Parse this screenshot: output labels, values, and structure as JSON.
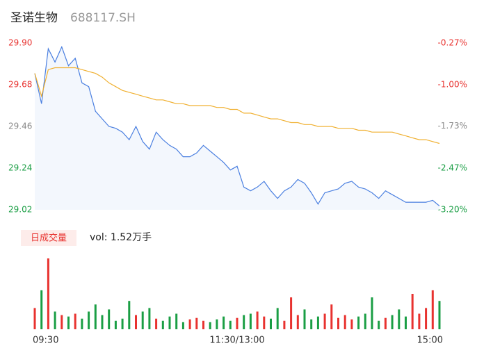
{
  "chart_data": {
    "type": "intraday",
    "title": "圣诺生物",
    "code": "688117.SH",
    "volume_button": "日成交量",
    "volume_label": "vol: 1.52万手",
    "xlim": [
      0,
      240
    ],
    "xticks": [
      {
        "value": 0,
        "label": "09:30"
      },
      {
        "value": 120,
        "label": "11:30/13:00"
      },
      {
        "value": 240,
        "label": "15:00"
      }
    ],
    "ylim": [
      29.02,
      29.9
    ],
    "yticks": [
      {
        "value": 29.9,
        "label": "29.90"
      },
      29.68,
      29.46,
      29.24,
      29.02
    ],
    "ytick_colors": [
      "#e8322f",
      "#e8322f",
      "#888888",
      "#1a9e44",
      "#1a9e44"
    ],
    "y2lim": [
      -3.2,
      -0.27
    ],
    "y2ticks": [
      {
        "value": -0.27,
        "label": "-0.27%"
      },
      {
        "value": -1.0,
        "label": "-1.00%"
      },
      {
        "value": -1.73,
        "label": "-1.73%"
      },
      {
        "value": -2.47,
        "label": "-2.47%"
      },
      {
        "value": -3.2,
        "label": "-3.20%"
      }
    ],
    "y2tick_colors": [
      "#e8322f",
      "#e8322f",
      "#888888",
      "#1a9e44",
      "#1a9e44"
    ],
    "x": [
      0,
      4,
      8,
      12,
      16,
      20,
      24,
      28,
      32,
      36,
      40,
      44,
      48,
      52,
      56,
      60,
      64,
      68,
      72,
      76,
      80,
      84,
      88,
      92,
      96,
      100,
      104,
      108,
      112,
      116,
      120,
      124,
      128,
      132,
      136,
      140,
      144,
      148,
      152,
      156,
      160,
      164,
      168,
      172,
      176,
      180,
      184,
      188,
      192,
      196,
      200,
      204,
      208,
      212,
      216,
      220,
      224,
      228,
      232,
      236,
      240
    ],
    "series": [
      {
        "name": "price",
        "color": "#4a7fe0",
        "values": [
          29.74,
          29.58,
          29.87,
          29.8,
          29.88,
          29.78,
          29.82,
          29.69,
          29.67,
          29.54,
          29.5,
          29.46,
          29.45,
          29.43,
          29.39,
          29.46,
          29.38,
          29.34,
          29.43,
          29.39,
          29.36,
          29.34,
          29.3,
          29.3,
          29.32,
          29.36,
          29.33,
          29.3,
          29.27,
          29.23,
          29.25,
          29.14,
          29.12,
          29.14,
          29.17,
          29.12,
          29.08,
          29.12,
          29.14,
          29.18,
          29.16,
          29.11,
          29.05,
          29.11,
          29.12,
          29.13,
          29.16,
          29.17,
          29.14,
          29.13,
          29.11,
          29.08,
          29.12,
          29.1,
          29.08,
          29.06,
          29.06,
          29.06,
          29.06,
          29.07,
          29.04
        ]
      },
      {
        "name": "average",
        "color": "#f0b030",
        "values": [
          29.74,
          29.62,
          29.76,
          29.77,
          29.77,
          29.77,
          29.77,
          29.76,
          29.75,
          29.74,
          29.72,
          29.69,
          29.67,
          29.65,
          29.64,
          29.63,
          29.62,
          29.61,
          29.6,
          29.6,
          29.59,
          29.58,
          29.58,
          29.57,
          29.57,
          29.57,
          29.57,
          29.56,
          29.56,
          29.55,
          29.55,
          29.53,
          29.53,
          29.52,
          29.51,
          29.5,
          29.5,
          29.49,
          29.48,
          29.48,
          29.47,
          29.47,
          29.46,
          29.46,
          29.46,
          29.45,
          29.45,
          29.45,
          29.44,
          29.44,
          29.43,
          29.43,
          29.43,
          29.43,
          29.42,
          29.41,
          29.4,
          29.39,
          29.39,
          29.38,
          29.37
        ]
      }
    ],
    "volume": {
      "up_color": "#e8322f",
      "down_color": "#1a9e44",
      "values": [
        30,
        55,
        100,
        25,
        20,
        18,
        22,
        15,
        25,
        35,
        20,
        28,
        12,
        15,
        40,
        20,
        25,
        30,
        15,
        12,
        18,
        22,
        10,
        14,
        16,
        12,
        10,
        14,
        18,
        12,
        16,
        20,
        22,
        25,
        18,
        15,
        30,
        12,
        45,
        20,
        28,
        14,
        18,
        22,
        35,
        16,
        20,
        14,
        18,
        22,
        45,
        12,
        16,
        20,
        28,
        18,
        50,
        22,
        30,
        55,
        40
      ]
    }
  }
}
